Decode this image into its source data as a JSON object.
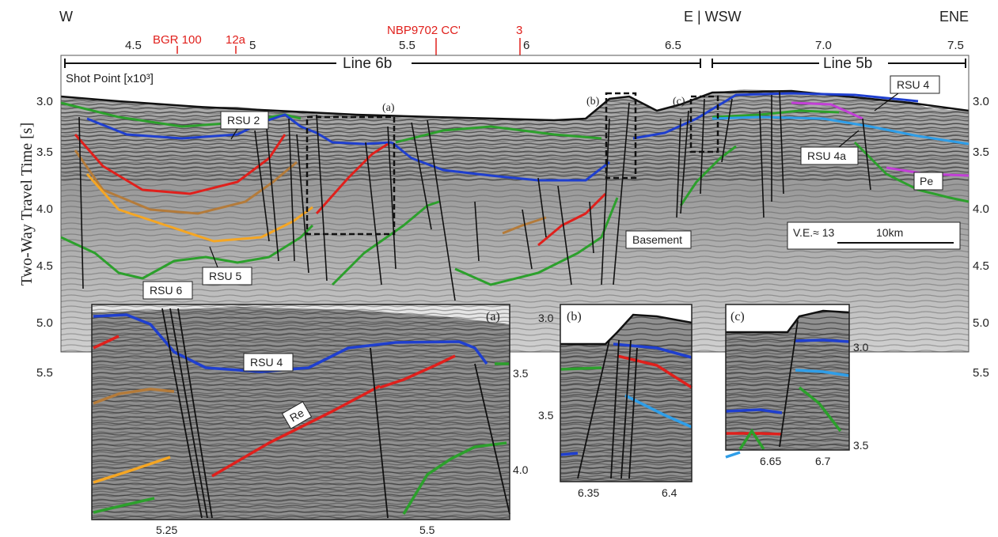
{
  "directions": {
    "w": "W",
    "e_wsw": "E | WSW",
    "ene": "ENE"
  },
  "shot_point_ticks": [
    "4.5",
    "5",
    "5.5",
    "6",
    "6.5",
    "7.0",
    "7.5"
  ],
  "crossing_labels": [
    "BGR 100",
    "12a",
    "NBP9702 CC'",
    "3"
  ],
  "line_labels": {
    "line6b": "Line 6b",
    "line5b": "Line 5b"
  },
  "shot_point_label": "Shot Point [x10³]",
  "y_axis_label": "Two-Way Travel Time [s]",
  "y_ticks": [
    "3.0",
    "3.5",
    "4.0",
    "4.5",
    "5.0",
    "5.5"
  ],
  "horizon_labels": {
    "rsu2": "RSU 2",
    "rsu4": "RSU 4",
    "rsu4a": "RSU 4a",
    "rsu5": "RSU 5",
    "rsu6": "RSU 6",
    "pe": "Pe",
    "basement": "Basement",
    "re": "Re"
  },
  "scale": {
    "ve": "V.E.≈ 13",
    "length": "10km"
  },
  "box_labels": {
    "a": "(a)",
    "b": "(b)",
    "c": "(c)"
  },
  "inset_a": {
    "label": "(a)",
    "x_ticks": [
      "5.25",
      "5.5"
    ],
    "y_ticks": [
      "3.5",
      "4.0"
    ]
  },
  "inset_b": {
    "label": "(b)",
    "x_ticks": [
      "6.35",
      "6.4"
    ],
    "y_ticks": [
      "3.0",
      "3.5"
    ]
  },
  "inset_c": {
    "label": "(c)",
    "x_ticks": [
      "6.65",
      "6.7"
    ],
    "y_ticks": [
      "3.0",
      "3.5"
    ]
  },
  "colors": {
    "green": "#2ca02c",
    "blue": "#1f3fcf",
    "red": "#e0201c",
    "orange": "#f5a623",
    "brown": "#b47b3a",
    "lightblue": "#2f9ee8",
    "magenta": "#c23fd6"
  }
}
